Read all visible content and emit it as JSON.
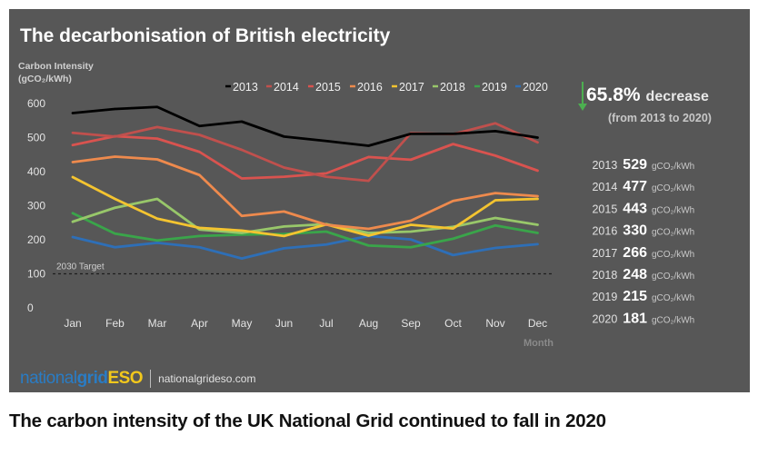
{
  "caption": "The carbon intensity of the UK National Grid continued to fall in 2020",
  "chart_data": {
    "type": "line",
    "title": "The decarbonisation of British electricity",
    "ylabel_line1": "Carbon Intensity",
    "ylabel_line2": "(gCO₂/kWh)",
    "xlabel": "Month",
    "ylim": [
      0,
      600
    ],
    "yticks": [
      0,
      100,
      200,
      300,
      400,
      500,
      600
    ],
    "grid": false,
    "legend_placement": "top",
    "categories": [
      "Jan",
      "Feb",
      "Mar",
      "Apr",
      "May",
      "Jun",
      "Jul",
      "Aug",
      "Sep",
      "Oct",
      "Nov",
      "Dec"
    ],
    "series": [
      {
        "name": "2013",
        "color": "#000000",
        "values": [
          572,
          584,
          590,
          534,
          547,
          503,
          490,
          476,
          511,
          511,
          519,
          500
        ]
      },
      {
        "name": "2014",
        "color": "#c0504d",
        "values": [
          514,
          503,
          531,
          508,
          464,
          412,
          385,
          373,
          513,
          510,
          542,
          486
        ]
      },
      {
        "name": "2015",
        "color": "#d9534f",
        "values": [
          478,
          504,
          497,
          458,
          380,
          385,
          395,
          443,
          435,
          481,
          447,
          403
        ]
      },
      {
        "name": "2016",
        "color": "#ee8a4d",
        "values": [
          428,
          444,
          436,
          390,
          270,
          283,
          244,
          232,
          256,
          314,
          337,
          328
        ]
      },
      {
        "name": "2017",
        "color": "#f4c430",
        "values": [
          384,
          320,
          262,
          235,
          227,
          211,
          245,
          212,
          244,
          233,
          316,
          320
        ]
      },
      {
        "name": "2018",
        "color": "#98c76a",
        "values": [
          253,
          294,
          320,
          230,
          220,
          239,
          246,
          220,
          224,
          238,
          264,
          244
        ]
      },
      {
        "name": "2019",
        "color": "#3aa54a",
        "values": [
          278,
          218,
          198,
          211,
          215,
          217,
          224,
          183,
          178,
          203,
          242,
          220
        ]
      },
      {
        "name": "2020",
        "color": "#2e6fb7",
        "values": [
          208,
          178,
          191,
          178,
          145,
          175,
          186,
          211,
          201,
          155,
          176,
          187
        ]
      }
    ],
    "reference_line": {
      "label": "2030 Target",
      "value": 100
    },
    "decrease": {
      "value": "65.8%",
      "word": "decrease",
      "note": "(from 2013 to 2020)",
      "arrow_color": "#4caf50"
    },
    "annual_averages": [
      {
        "year": "2013",
        "value": "529",
        "unit": "gCO₂/kWh"
      },
      {
        "year": "2014",
        "value": "477",
        "unit": "gCO₂/kWh"
      },
      {
        "year": "2015",
        "value": "443",
        "unit": "gCO₂/kWh"
      },
      {
        "year": "2016",
        "value": "330",
        "unit": "gCO₂/kWh"
      },
      {
        "year": "2017",
        "value": "266",
        "unit": "gCO₂/kWh"
      },
      {
        "year": "2018",
        "value": "248",
        "unit": "gCO₂/kWh"
      },
      {
        "year": "2019",
        "value": "215",
        "unit": "gCO₂/kWh"
      },
      {
        "year": "2020",
        "value": "181",
        "unit": "gCO₂/kWh"
      }
    ]
  },
  "footer": {
    "logo_part1": "national",
    "logo_part2": "grid",
    "logo_part3": "ESO",
    "url": "nationalgrideso.com"
  },
  "colors": {
    "panel": "#575757",
    "logo_blue": "#2a7cc4",
    "logo_yellow": "#f2c81c"
  }
}
